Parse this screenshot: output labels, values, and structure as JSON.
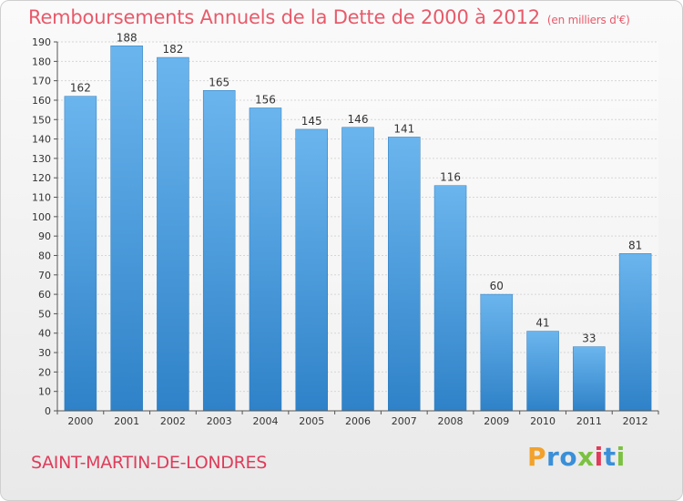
{
  "title": "Remboursements Annuels de la Dette de 2000 à 2012",
  "subtitle": "(en milliers d'€)",
  "commune": "SAINT-MARTIN-DE-LONDRES",
  "logo": {
    "letters": [
      {
        "ch": "P",
        "color": "#f2a12c"
      },
      {
        "ch": "r",
        "color": "#3a8fd8"
      },
      {
        "ch": "o",
        "color": "#3a8fd8"
      },
      {
        "ch": "x",
        "color": "#7cc142"
      },
      {
        "ch": "i",
        "color": "#e03b5a"
      },
      {
        "ch": "t",
        "color": "#3a8fd8"
      },
      {
        "ch": "i",
        "color": "#7cc142"
      }
    ]
  },
  "colors": {
    "title": "#e85a6a",
    "bar_top": "#6bb5ee",
    "bar_bottom": "#2f82c8",
    "grid": "#d6d6d6",
    "axis": "#555555"
  },
  "chart_data": {
    "type": "bar",
    "title": "Remboursements Annuels de la Dette de 2000 à 2012",
    "ylabel": "en milliers d'€",
    "xlabel": "",
    "categories": [
      "2000",
      "2001",
      "2002",
      "2003",
      "2004",
      "2005",
      "2006",
      "2007",
      "2008",
      "2009",
      "2010",
      "2011",
      "2012"
    ],
    "values": [
      162,
      188,
      182,
      165,
      156,
      145,
      146,
      141,
      116,
      60,
      41,
      33,
      81
    ],
    "ylim": [
      0,
      190
    ],
    "yticks": [
      0,
      10,
      20,
      30,
      40,
      50,
      60,
      70,
      80,
      90,
      100,
      110,
      120,
      130,
      140,
      150,
      160,
      170,
      180,
      190
    ],
    "grid": true
  }
}
